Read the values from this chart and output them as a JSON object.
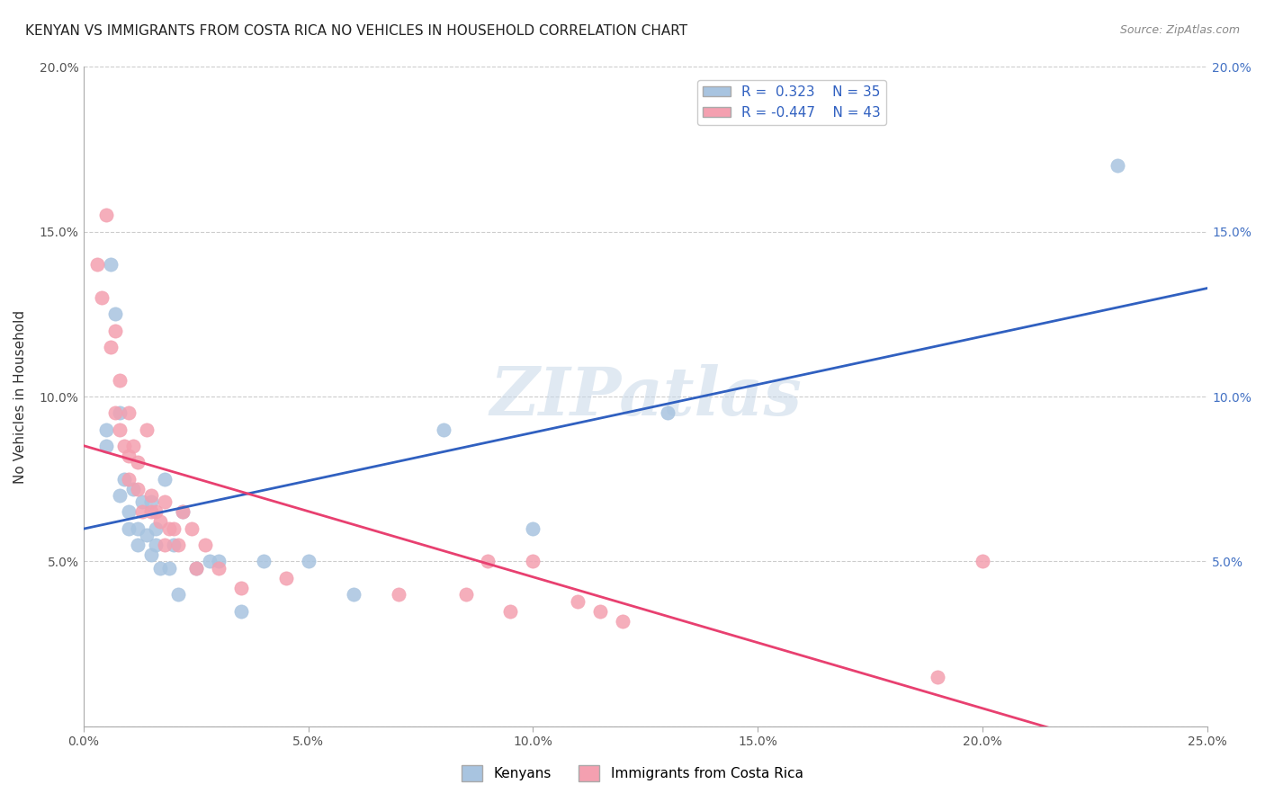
{
  "title": "KENYAN VS IMMIGRANTS FROM COSTA RICA NO VEHICLES IN HOUSEHOLD CORRELATION CHART",
  "source": "Source: ZipAtlas.com",
  "ylabel": "No Vehicles in Household",
  "xlim": [
    0.0,
    0.25
  ],
  "ylim": [
    0.0,
    0.2
  ],
  "xticks": [
    0.0,
    0.05,
    0.1,
    0.15,
    0.2,
    0.25
  ],
  "yticks": [
    0.0,
    0.05,
    0.1,
    0.15,
    0.2
  ],
  "xticklabels": [
    "0.0%",
    "5.0%",
    "10.0%",
    "15.0%",
    "20.0%",
    "25.0%"
  ],
  "yticklabels_left": [
    "",
    "5.0%",
    "10.0%",
    "15.0%",
    "20.0%"
  ],
  "yticklabels_right": [
    "",
    "5.0%",
    "10.0%",
    "15.0%",
    "20.0%"
  ],
  "legend1_label": "Kenyans",
  "legend2_label": "Immigrants from Costa Rica",
  "r1": 0.323,
  "n1": 35,
  "r2": -0.447,
  "n2": 43,
  "blue_color": "#a8c4e0",
  "pink_color": "#f4a0b0",
  "blue_line_color": "#3060c0",
  "pink_line_color": "#e84070",
  "watermark": "ZIPatlas",
  "blue_scatter_x": [
    0.005,
    0.005,
    0.006,
    0.007,
    0.008,
    0.008,
    0.009,
    0.01,
    0.01,
    0.011,
    0.012,
    0.012,
    0.013,
    0.014,
    0.015,
    0.015,
    0.016,
    0.016,
    0.017,
    0.018,
    0.019,
    0.02,
    0.021,
    0.022,
    0.025,
    0.028,
    0.03,
    0.035,
    0.04,
    0.05,
    0.06,
    0.08,
    0.1,
    0.13,
    0.23
  ],
  "blue_scatter_y": [
    0.09,
    0.085,
    0.14,
    0.125,
    0.095,
    0.07,
    0.075,
    0.065,
    0.06,
    0.072,
    0.06,
    0.055,
    0.068,
    0.058,
    0.052,
    0.068,
    0.06,
    0.055,
    0.048,
    0.075,
    0.048,
    0.055,
    0.04,
    0.065,
    0.048,
    0.05,
    0.05,
    0.035,
    0.05,
    0.05,
    0.04,
    0.09,
    0.06,
    0.095,
    0.17
  ],
  "pink_scatter_x": [
    0.003,
    0.004,
    0.005,
    0.006,
    0.007,
    0.007,
    0.008,
    0.008,
    0.009,
    0.01,
    0.01,
    0.01,
    0.011,
    0.012,
    0.012,
    0.013,
    0.014,
    0.015,
    0.015,
    0.016,
    0.017,
    0.018,
    0.018,
    0.019,
    0.02,
    0.021,
    0.022,
    0.024,
    0.025,
    0.027,
    0.03,
    0.035,
    0.045,
    0.07,
    0.085,
    0.09,
    0.095,
    0.1,
    0.11,
    0.115,
    0.12,
    0.19,
    0.2
  ],
  "pink_scatter_y": [
    0.14,
    0.13,
    0.155,
    0.115,
    0.12,
    0.095,
    0.09,
    0.105,
    0.085,
    0.095,
    0.082,
    0.075,
    0.085,
    0.08,
    0.072,
    0.065,
    0.09,
    0.07,
    0.065,
    0.065,
    0.062,
    0.055,
    0.068,
    0.06,
    0.06,
    0.055,
    0.065,
    0.06,
    0.048,
    0.055,
    0.048,
    0.042,
    0.045,
    0.04,
    0.04,
    0.05,
    0.035,
    0.05,
    0.038,
    0.035,
    0.032,
    0.015,
    0.05
  ],
  "title_fontsize": 11,
  "axis_label_fontsize": 11,
  "tick_fontsize": 10,
  "legend_fontsize": 11
}
